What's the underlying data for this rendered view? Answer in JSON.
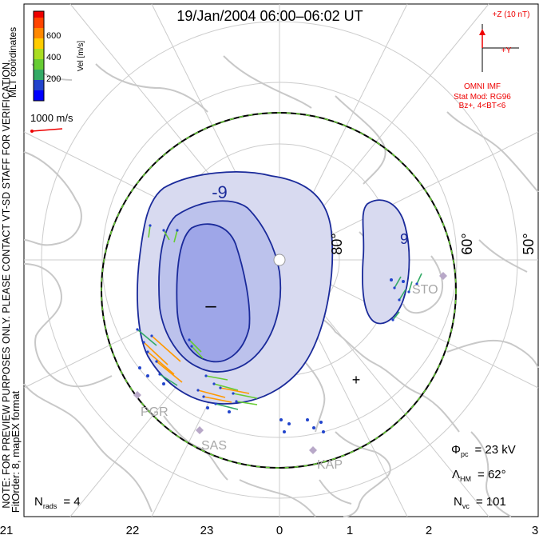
{
  "title": "19/Jan/2004 06:00–06:02 UT",
  "colorbar": {
    "label": "Vel [m/s]",
    "ticks": [
      "600",
      "400",
      "200"
    ],
    "colors": [
      "#0000ff",
      "#2244cc",
      "#33aa66",
      "#66cc33",
      "#aadd22",
      "#ffcc00",
      "#ff8800",
      "#ff4400",
      "#ee0000"
    ]
  },
  "coord_label": "MLT coordinates",
  "scale_vector": {
    "label": "1000 m/s"
  },
  "notice": "NOTE: FOR PREVIEW PURPOSES ONLY. PLEASE CONTACT VT-SD STAFF FOR VERIFICATION.",
  "fit_info": "FitOrder: 8, mapEX format",
  "imf": {
    "z_label": "+Z (10 nT)",
    "y_label": "+Y",
    "source": "OMNI IMF",
    "model": "Stat Mod: RG96",
    "condition": "Bz+, 4<BT<6"
  },
  "contours": {
    "neg_label": "-9",
    "center_neg": "–",
    "pos_label": "9"
  },
  "latitude_labels": [
    "80°",
    "60°",
    "50°"
  ],
  "stations": [
    "PGR",
    "SAS",
    "KAP",
    "STO"
  ],
  "mlt_ticks": [
    "21",
    "22",
    "23",
    "0",
    "1",
    "2",
    "3"
  ],
  "stats": {
    "phi_pc_label": "Φ",
    "phi_pc_sub": "pc",
    "phi_pc_value": "= 23 kV",
    "lambda_label": "Λ",
    "lambda_sub": "HM",
    "lambda_value": "= 62°",
    "nvc_label": "N",
    "nvc_sub": "vc",
    "nvc_value": "= 101",
    "nrads_label": "N",
    "nrads_sub": "rads",
    "nrads_value": "= 4"
  },
  "colors": {
    "negative_cell": "#d8daf0",
    "negative_core": "#9ea6e8",
    "contour": "#1a2a9a",
    "land": "#c8c8c8",
    "grid": "#cccccc",
    "imf": "#ee0000"
  }
}
